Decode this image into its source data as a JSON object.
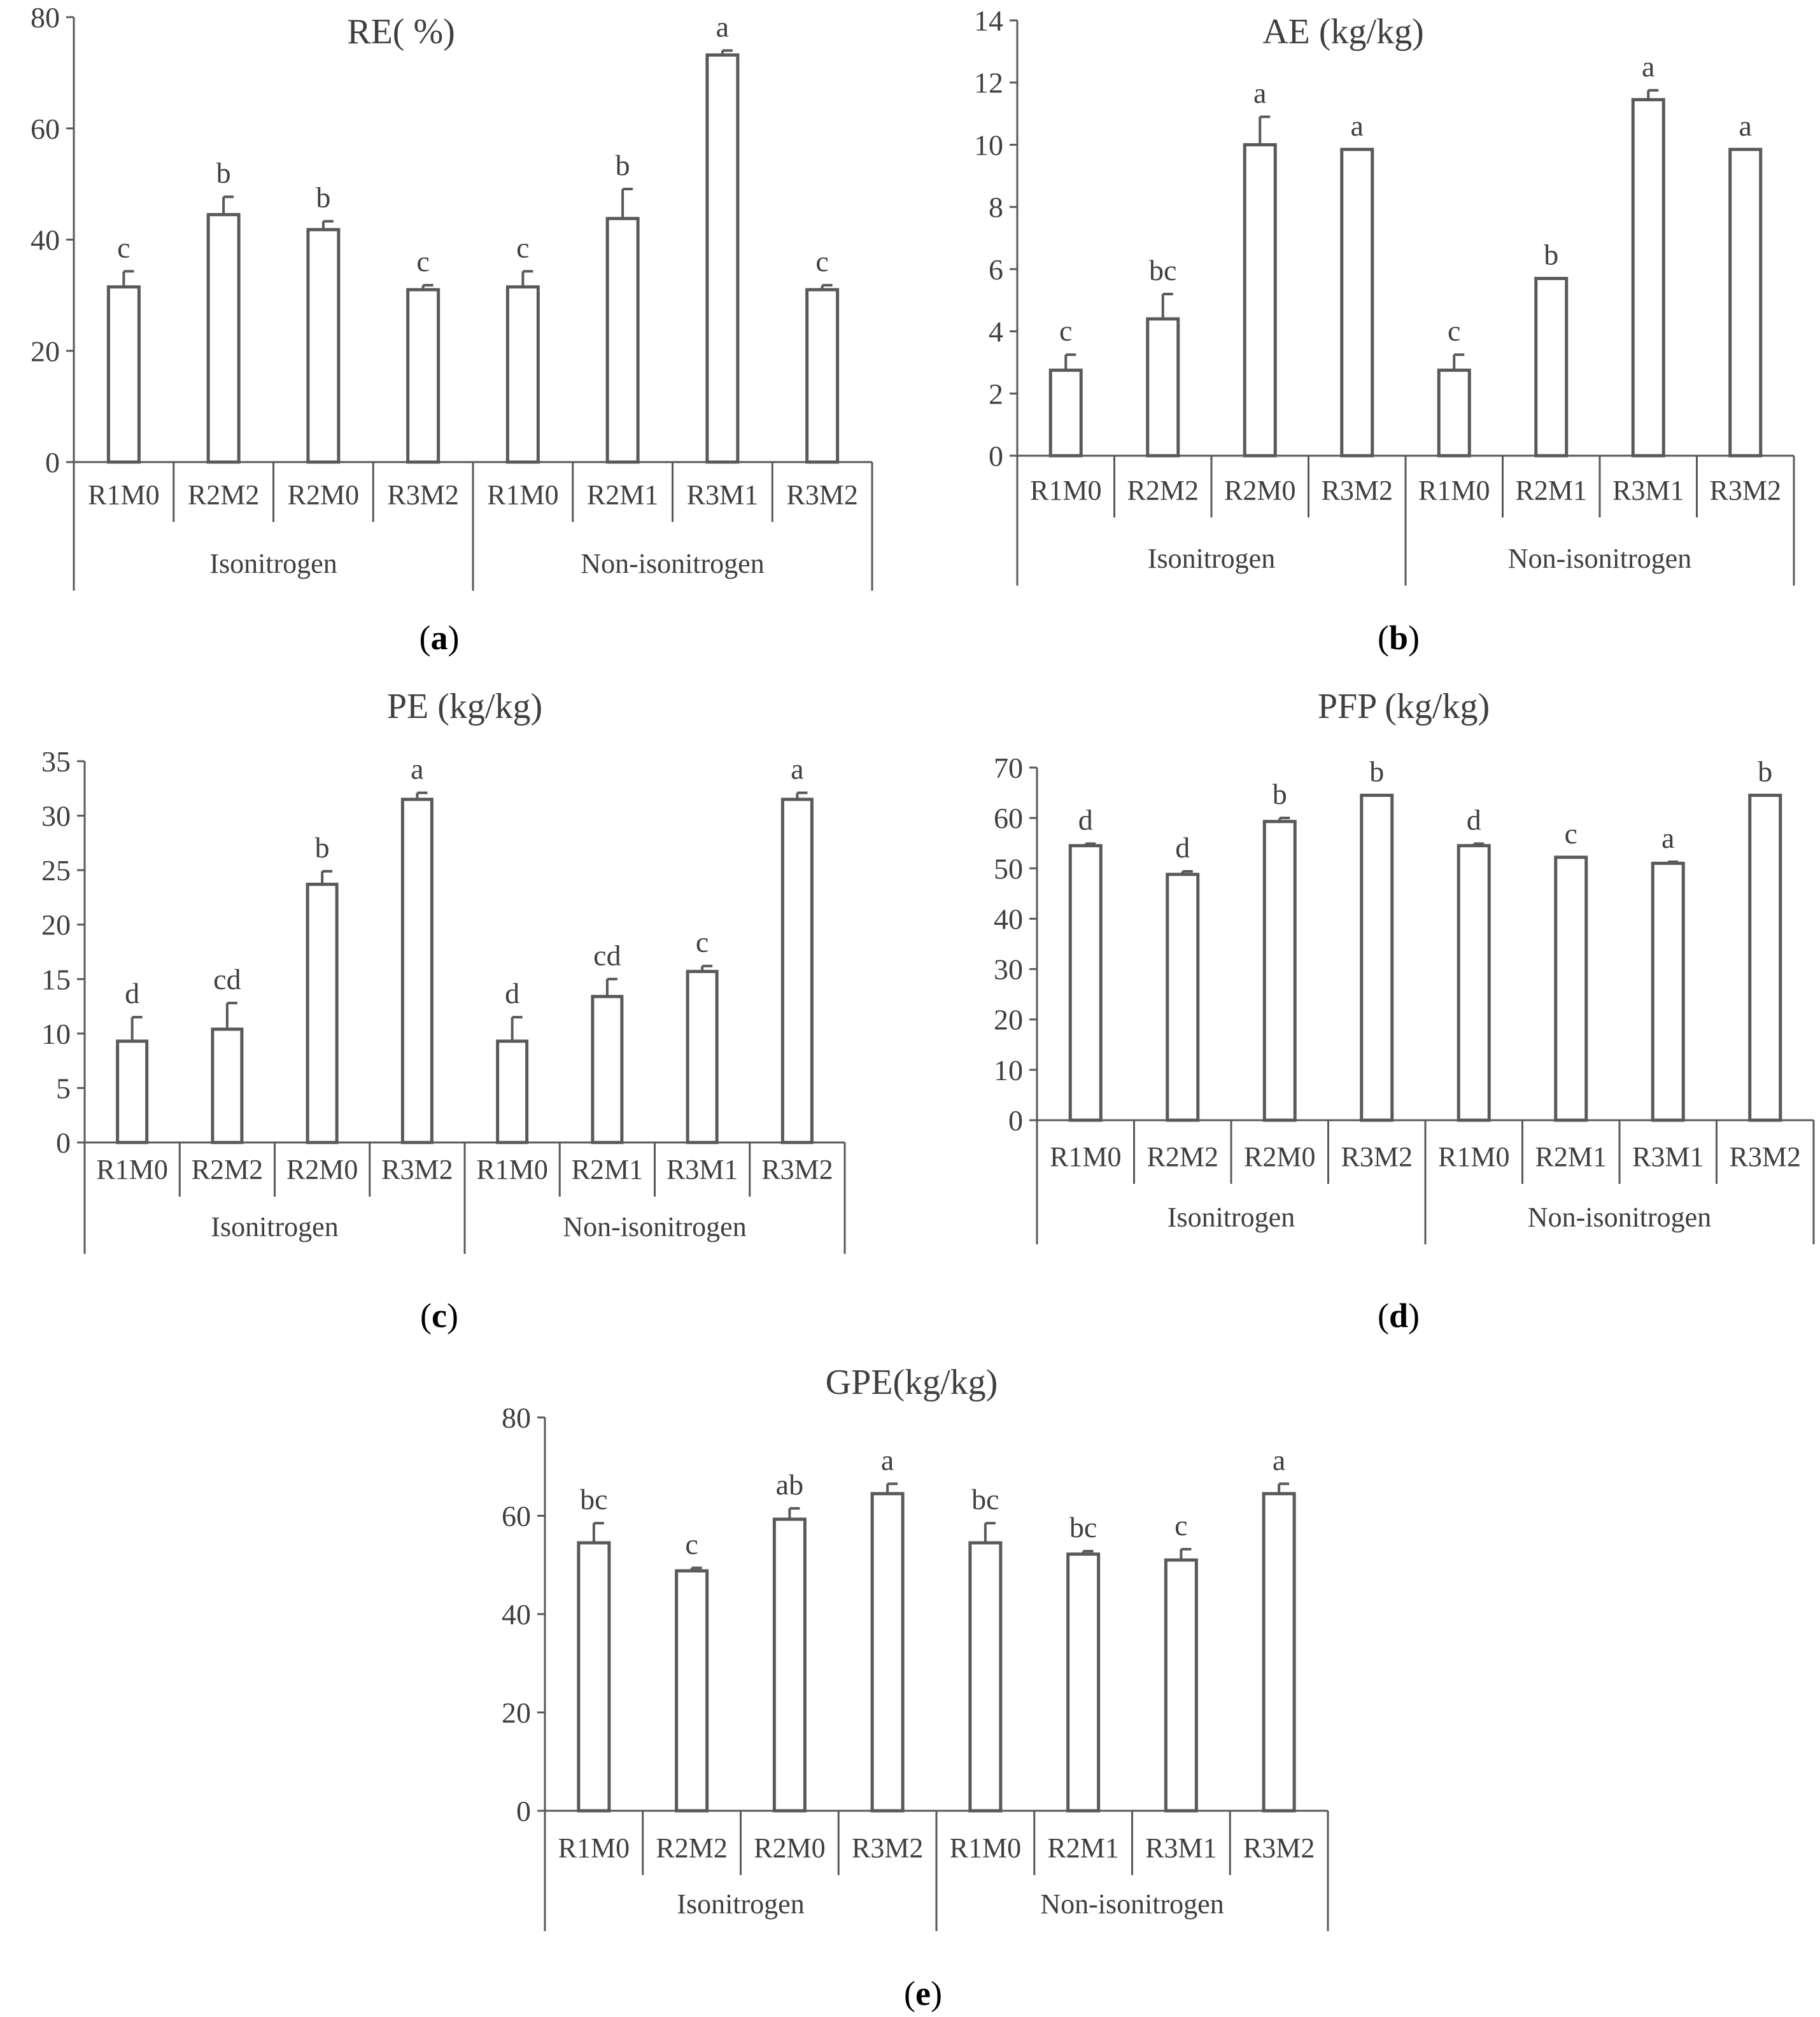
{
  "chart_data": [
    {
      "panel": "a",
      "type": "bar",
      "title": "RE( %)",
      "ylim": [
        0,
        80
      ],
      "yticks": [
        0,
        20,
        40,
        60,
        80
      ],
      "categories": [
        "R1M0",
        "R2M2",
        "R2M0",
        "R3M2",
        "R1M0",
        "R2M1",
        "R3M1",
        "R3M2"
      ],
      "groups": [
        {
          "label": "Isonitrogen",
          "span": 4
        },
        {
          "label": "Non-isonitrogen",
          "span": 4
        }
      ],
      "values": [
        31.5,
        44.5,
        41.8,
        31.0,
        31.5,
        43.8,
        73.2,
        31.0
      ],
      "errors": [
        2.8,
        3.2,
        1.5,
        0.8,
        2.8,
        5.3,
        0.8,
        0.8
      ],
      "letters": [
        "c",
        "b",
        "b",
        "c",
        "c",
        "b",
        "a",
        "c"
      ]
    },
    {
      "panel": "b",
      "type": "bar",
      "title": "AE (kg/kg)",
      "ylim": [
        0,
        14
      ],
      "yticks": [
        0,
        2,
        4,
        6,
        8,
        10,
        12,
        14
      ],
      "categories": [
        "R1M0",
        "R2M2",
        "R2M0",
        "R3M2",
        "R1M0",
        "R2M1",
        "R3M1",
        "R3M2"
      ],
      "groups": [
        {
          "label": "Isonitrogen",
          "span": 4
        },
        {
          "label": "Non-isonitrogen",
          "span": 4
        }
      ],
      "values": [
        2.75,
        4.4,
        10.0,
        9.85,
        2.75,
        5.7,
        11.45,
        9.85
      ],
      "errors": [
        0.5,
        0.8,
        0.9,
        0.0,
        0.5,
        0.0,
        0.3,
        0.0
      ],
      "letters": [
        "c",
        "bc",
        "a",
        "a",
        "c",
        "b",
        "a",
        "a"
      ]
    },
    {
      "panel": "c",
      "type": "bar",
      "title": "PE (kg/kg)",
      "ylim": [
        0,
        35
      ],
      "yticks": [
        0,
        5,
        10,
        15,
        20,
        25,
        30,
        35
      ],
      "categories": [
        "R1M0",
        "R2M2",
        "R2M0",
        "R3M2",
        "R1M0",
        "R2M1",
        "R3M1",
        "R3M2"
      ],
      "groups": [
        {
          "label": "Isonitrogen",
          "span": 4
        },
        {
          "label": "Non-isonitrogen",
          "span": 4
        }
      ],
      "values": [
        9.3,
        10.4,
        23.7,
        31.5,
        9.3,
        13.4,
        15.7,
        31.5
      ],
      "errors": [
        2.2,
        2.4,
        1.2,
        0.6,
        2.2,
        1.6,
        0.5,
        0.6
      ],
      "letters": [
        "d",
        "cd",
        "b",
        "a",
        "d",
        "cd",
        "c",
        "a"
      ]
    },
    {
      "panel": "d",
      "type": "bar",
      "title": "PFP (kg/kg)",
      "ylim": [
        0,
        70
      ],
      "yticks": [
        0,
        10,
        20,
        30,
        40,
        50,
        60,
        70
      ],
      "categories": [
        "R1M0",
        "R2M2",
        "R2M0",
        "R3M2",
        "R1M0",
        "R2M1",
        "R3M1",
        "R3M2"
      ],
      "groups": [
        {
          "label": "Isonitrogen",
          "span": 4
        },
        {
          "label": "Non-isonitrogen",
          "span": 4
        }
      ],
      "values": [
        54.5,
        48.8,
        59.3,
        64.5,
        54.5,
        52.2,
        51.0,
        64.5
      ],
      "errors": [
        0.4,
        0.6,
        0.7,
        0.0,
        0.4,
        0.0,
        0.3,
        0.0
      ],
      "letters": [
        "d",
        "d",
        "b",
        "b",
        "d",
        "c",
        "a",
        "b"
      ]
    },
    {
      "panel": "e",
      "type": "bar",
      "title": "GPE(kg/kg)",
      "ylim": [
        0,
        80
      ],
      "yticks": [
        0,
        20,
        40,
        60,
        80
      ],
      "categories": [
        "R1M0",
        "R2M2",
        "R2M0",
        "R3M2",
        "R1M0",
        "R2M1",
        "R3M1",
        "R3M2"
      ],
      "groups": [
        {
          "label": "Isonitrogen",
          "span": 4
        },
        {
          "label": "Non-isonitrogen",
          "span": 4
        }
      ],
      "values": [
        54.5,
        48.8,
        59.3,
        64.5,
        54.5,
        52.2,
        51.0,
        64.5
      ],
      "errors": [
        4.0,
        0.6,
        2.2,
        2.0,
        4.0,
        0.6,
        2.2,
        2.0
      ],
      "letters": [
        "bc",
        "c",
        "ab",
        "a",
        "bc",
        "bc",
        "c",
        "a"
      ]
    }
  ]
}
